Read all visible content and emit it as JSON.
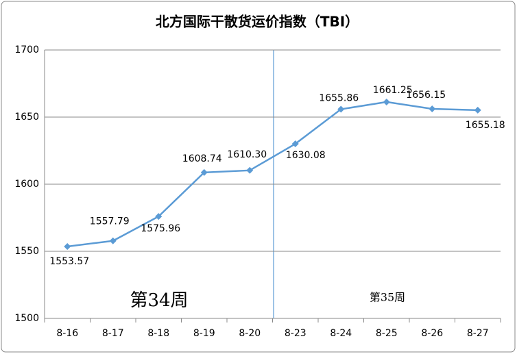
{
  "chart_data": {
    "type": "line",
    "title": "北方国际干散货运价指数（TBI）",
    "categories": [
      "8-16",
      "8-17",
      "8-18",
      "8-19",
      "8-20",
      "8-23",
      "8-24",
      "8-25",
      "8-26",
      "8-27"
    ],
    "series": [
      {
        "name": "TBI",
        "color": "#5b9bd5",
        "values": [
          1553.57,
          1557.79,
          1575.96,
          1608.74,
          1610.3,
          1630.08,
          1655.86,
          1661.25,
          1656.15,
          1655.18
        ],
        "value_labels": [
          "1553.57",
          "1557.79",
          "1575.96",
          "1608.74",
          "1610.30",
          "1630.08",
          "1655.86",
          "1661.25",
          "1656.15",
          "1655.18"
        ]
      }
    ],
    "ylim": [
      1500,
      1700
    ],
    "yticks": [
      1500,
      1550,
      1600,
      1650,
      1700
    ],
    "grid": true,
    "annotations": [
      "第34周",
      "第35周"
    ]
  }
}
